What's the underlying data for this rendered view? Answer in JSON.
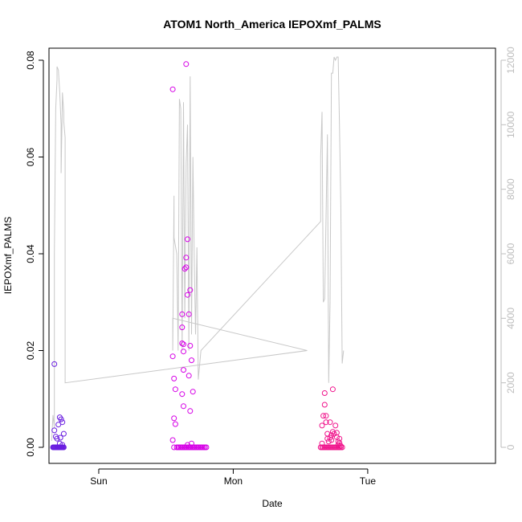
{
  "chart_data": {
    "type": "scatter",
    "title": "ATOM1 North_America IEPOXmf_PALMS",
    "xlabel": "Date",
    "ylabel": "IEPOXmf_PALMS",
    "x_unit": "days since start of Sunday",
    "xlim": [
      -0.37,
      2.95
    ],
    "ylim": [
      0,
      0.08
    ],
    "y_ticks": [
      0.0,
      0.02,
      0.04,
      0.06,
      0.08
    ],
    "y_tick_labels": [
      "0.00",
      "0.02",
      "0.04",
      "0.06",
      "0.08"
    ],
    "y2lim": [
      0,
      12000
    ],
    "y2_ticks": [
      0,
      2000,
      4000,
      6000,
      8000,
      10000,
      12000
    ],
    "y2_tick_labels": [
      "0",
      "2000",
      "4000",
      "6000",
      "8000",
      "10000",
      "12000"
    ],
    "x_ticks": [
      0,
      1,
      2
    ],
    "x_tick_labels": [
      "Sun",
      "Mon",
      "Tue"
    ],
    "grid": false,
    "legend": "none",
    "colors": {
      "group1": "#6a1ee0",
      "group2": "#d600e6",
      "group3": "#f0148c",
      "line": "#c8c8c8"
    },
    "series": [
      {
        "color": "#6a1ee0",
        "points": [
          [
            -0.33,
            0.0172
          ],
          [
            -0.33,
            0.0035
          ],
          [
            -0.32,
            0.0022
          ],
          [
            -0.31,
            0.0018
          ],
          [
            -0.3,
            0.0047
          ],
          [
            -0.29,
            0.0062
          ],
          [
            -0.28,
            0.0058
          ],
          [
            -0.285,
            0.002
          ],
          [
            -0.27,
            0.0052
          ],
          [
            -0.26,
            0.0028
          ],
          [
            -0.29,
            0.0008
          ],
          [
            -0.27,
            0.0005
          ],
          [
            -0.34,
            0.0
          ],
          [
            -0.335,
            0.0
          ],
          [
            -0.33,
            0.0
          ],
          [
            -0.325,
            0.0
          ],
          [
            -0.32,
            0.0
          ],
          [
            -0.315,
            0.0
          ],
          [
            -0.31,
            0.0
          ],
          [
            -0.305,
            0.0
          ],
          [
            -0.3,
            0.0
          ],
          [
            -0.295,
            0.0
          ],
          [
            -0.29,
            0.0
          ],
          [
            -0.285,
            0.0
          ],
          [
            -0.28,
            0.0
          ],
          [
            -0.275,
            0.0
          ],
          [
            -0.27,
            0.0
          ],
          [
            -0.265,
            0.0
          ],
          [
            -0.26,
            0.0
          ]
        ]
      },
      {
        "color": "#d600e6",
        "points": [
          [
            0.55,
            0.074
          ],
          [
            0.55,
            0.0188
          ],
          [
            0.56,
            0.0142
          ],
          [
            0.57,
            0.012
          ],
          [
            0.56,
            0.006
          ],
          [
            0.57,
            0.0048
          ],
          [
            0.55,
            0.0015
          ],
          [
            0.62,
            0.0275
          ],
          [
            0.62,
            0.0248
          ],
          [
            0.62,
            0.0215
          ],
          [
            0.63,
            0.0213
          ],
          [
            0.63,
            0.0198
          ],
          [
            0.63,
            0.016
          ],
          [
            0.62,
            0.011
          ],
          [
            0.63,
            0.0085
          ],
          [
            0.64,
            0.0369
          ],
          [
            0.65,
            0.0392
          ],
          [
            0.65,
            0.0372
          ],
          [
            0.66,
            0.043
          ],
          [
            0.65,
            0.0792
          ],
          [
            0.66,
            0.0315
          ],
          [
            0.67,
            0.0275
          ],
          [
            0.67,
            0.0148
          ],
          [
            0.68,
            0.0325
          ],
          [
            0.68,
            0.021
          ],
          [
            0.69,
            0.018
          ],
          [
            0.68,
            0.0075
          ],
          [
            0.7,
            0.0115
          ],
          [
            0.69,
            0.0008
          ],
          [
            0.66,
            0.0005
          ],
          [
            0.56,
            0.0
          ],
          [
            0.58,
            0.0
          ],
          [
            0.59,
            0.0
          ],
          [
            0.6,
            0.0
          ],
          [
            0.61,
            0.0
          ],
          [
            0.62,
            0.0
          ],
          [
            0.63,
            0.0
          ],
          [
            0.64,
            0.0
          ],
          [
            0.65,
            0.0
          ],
          [
            0.66,
            0.0
          ],
          [
            0.67,
            0.0
          ],
          [
            0.68,
            0.0
          ],
          [
            0.69,
            0.0
          ],
          [
            0.7,
            0.0
          ],
          [
            0.71,
            0.0
          ],
          [
            0.72,
            0.0
          ],
          [
            0.73,
            0.0
          ],
          [
            0.74,
            0.0
          ],
          [
            0.75,
            0.0
          ],
          [
            0.76,
            0.0
          ],
          [
            0.77,
            0.0
          ],
          [
            0.78,
            0.0
          ],
          [
            0.79,
            0.0
          ],
          [
            0.8,
            0.0
          ]
        ]
      },
      {
        "color": "#f0148c",
        "points": [
          [
            1.66,
            0.0045
          ],
          [
            1.66,
            0.0008
          ],
          [
            1.67,
            0.0065
          ],
          [
            1.68,
            0.0112
          ],
          [
            1.68,
            0.0088
          ],
          [
            1.69,
            0.0065
          ],
          [
            1.69,
            0.0052
          ],
          [
            1.7,
            0.0028
          ],
          [
            1.7,
            0.0018
          ],
          [
            1.71,
            0.0012
          ],
          [
            1.72,
            0.0052
          ],
          [
            1.72,
            0.002
          ],
          [
            1.73,
            0.0025
          ],
          [
            1.73,
            0.0015
          ],
          [
            1.74,
            0.012
          ],
          [
            1.74,
            0.0032
          ],
          [
            1.75,
            0.0028
          ],
          [
            1.76,
            0.0045
          ],
          [
            1.77,
            0.003
          ],
          [
            1.77,
            0.0021
          ],
          [
            1.78,
            0.0012
          ],
          [
            1.78,
            0.0005
          ],
          [
            1.79,
            0.0018
          ],
          [
            1.79,
            0.0009
          ],
          [
            1.8,
            0.0003
          ],
          [
            1.65,
            0.0
          ],
          [
            1.66,
            0.0
          ],
          [
            1.67,
            0.0
          ],
          [
            1.68,
            0.0
          ],
          [
            1.69,
            0.0
          ],
          [
            1.7,
            0.0
          ],
          [
            1.71,
            0.0
          ],
          [
            1.72,
            0.0
          ],
          [
            1.73,
            0.0
          ],
          [
            1.74,
            0.0
          ],
          [
            1.75,
            0.0
          ],
          [
            1.76,
            0.0
          ],
          [
            1.77,
            0.0
          ],
          [
            1.78,
            0.0
          ],
          [
            1.79,
            0.0
          ],
          [
            1.8,
            0.0
          ],
          [
            1.81,
            0.0
          ]
        ]
      }
    ],
    "altitude_line": [
      [
        -0.35,
        200
      ],
      [
        -0.34,
        1000
      ],
      [
        -0.33,
        600
      ],
      [
        -0.33,
        6000
      ],
      [
        -0.32,
        10500
      ],
      [
        -0.31,
        11400
      ],
      [
        -0.31,
        11800
      ],
      [
        -0.3,
        11700
      ],
      [
        -0.29,
        11000
      ],
      [
        -0.28,
        10000
      ],
      [
        -0.28,
        8500
      ],
      [
        -0.27,
        10800
      ],
      [
        -0.27,
        11000
      ],
      [
        -0.26,
        10400
      ],
      [
        -0.26,
        10100
      ],
      [
        -0.25,
        9600
      ],
      [
        -0.25,
        2000
      ],
      [
        1.55,
        3000
      ],
      [
        0.55,
        4000
      ],
      [
        0.55,
        3000
      ],
      [
        0.56,
        7800
      ],
      [
        0.56,
        6500
      ],
      [
        0.58,
        6000
      ],
      [
        0.59,
        3000
      ],
      [
        0.6,
        10800
      ],
      [
        0.61,
        10500
      ],
      [
        0.62,
        3000
      ],
      [
        0.63,
        10700
      ],
      [
        0.64,
        4000
      ],
      [
        0.65,
        8800
      ],
      [
        0.66,
        10000
      ],
      [
        0.67,
        3000
      ],
      [
        0.68,
        11500
      ],
      [
        0.69,
        3500
      ],
      [
        0.7,
        9000
      ],
      [
        0.71,
        5800
      ],
      [
        0.72,
        3500
      ],
      [
        0.73,
        6200
      ],
      [
        0.74,
        2100
      ],
      [
        0.76,
        3000
      ],
      [
        1.65,
        7000
      ],
      [
        1.65,
        9000
      ],
      [
        1.66,
        10400
      ],
      [
        1.67,
        4500
      ],
      [
        1.68,
        4600
      ],
      [
        1.7,
        9700
      ],
      [
        1.71,
        2000
      ],
      [
        1.72,
        4500
      ],
      [
        1.73,
        11600
      ],
      [
        1.74,
        11600
      ],
      [
        1.75,
        12100
      ],
      [
        1.76,
        12000
      ],
      [
        1.77,
        12100
      ],
      [
        1.78,
        12100
      ],
      [
        1.79,
        10000
      ],
      [
        1.8,
        7500
      ],
      [
        1.81,
        2600
      ],
      [
        1.82,
        3000
      ]
    ]
  }
}
